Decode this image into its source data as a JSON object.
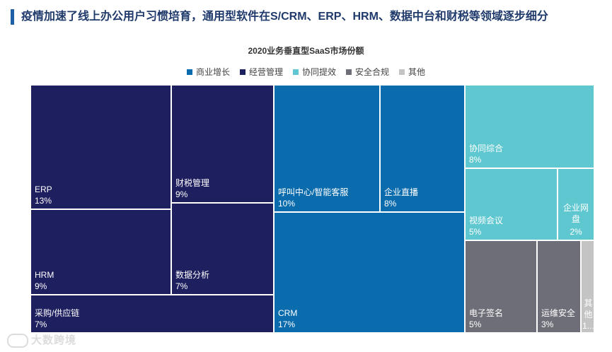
{
  "header": {
    "headline": "疫情加速了线上办公用户习惯培育，通用型软件在S/CRM、ERP、HRM、数据中台和财税等领域逐步细分"
  },
  "watermark": {
    "text": "大数跨境"
  },
  "chart_data": {
    "type": "treemap",
    "title": "2020业务垂直型SaaS市场份额",
    "legend_position": "top-center",
    "categories": [
      {
        "name": "商业增长",
        "color": "#0a6bad"
      },
      {
        "name": "经营管理",
        "color": "#1e1f5e"
      },
      {
        "name": "协同提效",
        "color": "#5ec7d0"
      },
      {
        "name": "安全合规",
        "color": "#6e6e78"
      },
      {
        "name": "其他",
        "color": "#c4c4c4"
      }
    ],
    "items": [
      {
        "category": "经营管理",
        "name": "ERP",
        "value_label": "13%",
        "value": 13
      },
      {
        "category": "经营管理",
        "name": "HRM",
        "value_label": "9%",
        "value": 9
      },
      {
        "category": "经营管理",
        "name": "采购/供应链",
        "value_label": "7%",
        "value": 7
      },
      {
        "category": "经营管理",
        "name": "财税管理",
        "value_label": "9%",
        "value": 9
      },
      {
        "category": "经营管理",
        "name": "数据分析",
        "value_label": "7%",
        "value": 7
      },
      {
        "category": "商业增长",
        "name": "呼叫中心/智能客服",
        "value_label": "10%",
        "value": 10
      },
      {
        "category": "商业增长",
        "name": "企业直播",
        "value_label": "8%",
        "value": 8
      },
      {
        "category": "商业增长",
        "name": "CRM",
        "value_label": "17%",
        "value": 17
      },
      {
        "category": "协同提效",
        "name": "协同综合",
        "value_label": "8%",
        "value": 8
      },
      {
        "category": "协同提效",
        "name": "视频会议",
        "value_label": "5%",
        "value": 5
      },
      {
        "category": "协同提效",
        "name": "企业网盘",
        "value_label": "2%",
        "value": 2
      },
      {
        "category": "安全合规",
        "name": "电子签名",
        "value_label": "5%",
        "value": 5
      },
      {
        "category": "安全合规",
        "name": "运维安全",
        "value_label": "3%",
        "value": 3
      },
      {
        "category": "其他",
        "name": "其他",
        "value_label": "1...",
        "value": 1
      }
    ]
  }
}
